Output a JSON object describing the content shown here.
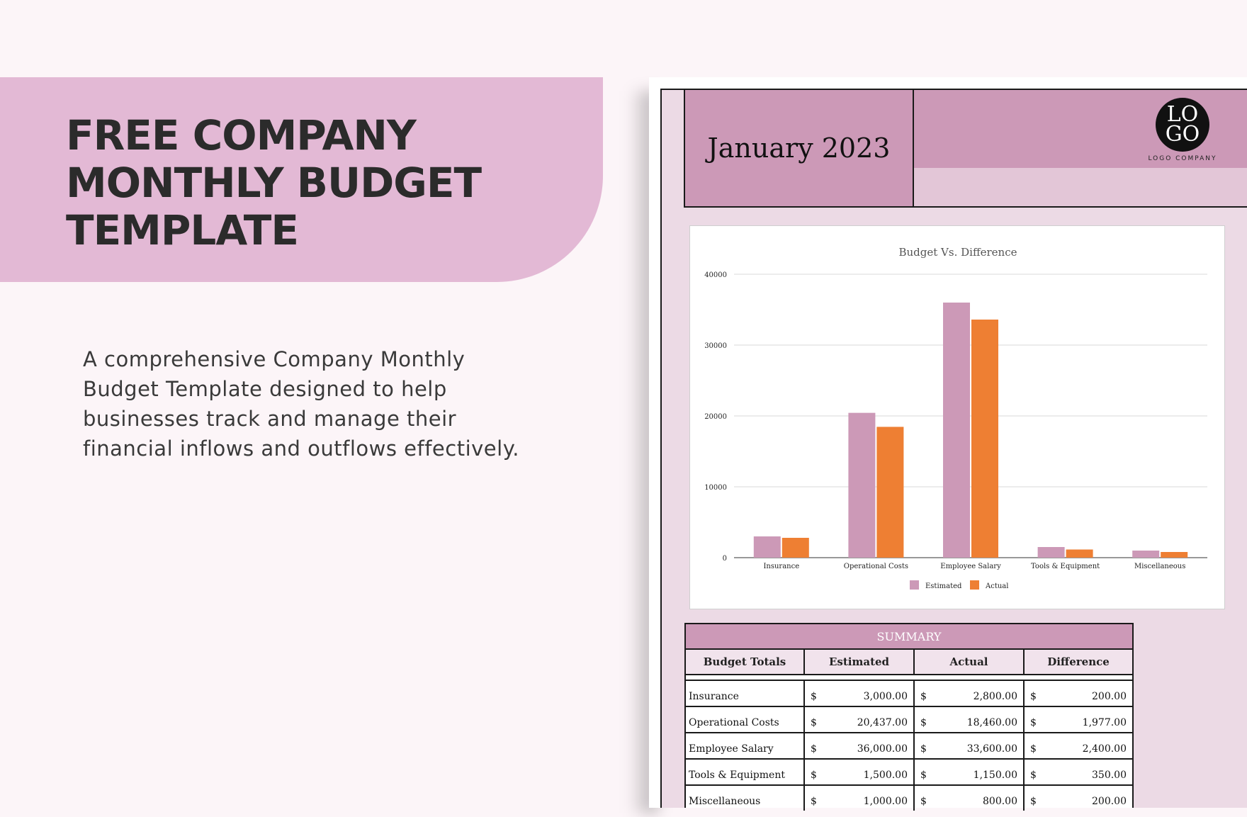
{
  "hero": {
    "title_line1": "FREE COMPANY",
    "title_line2": "MONTHLY BUDGET",
    "title_line3": "TEMPLATE",
    "description": "A comprehensive Company Monthly Budget Template designed to help businesses track and manage their financial inflows and outflows effectively."
  },
  "document": {
    "month": "January 2023",
    "logo_text_line1": "LO",
    "logo_text_line2": "GO",
    "logo_caption": "LOGO COMPANY"
  },
  "chart_data": {
    "type": "bar",
    "title": "Budget Vs. Difference",
    "categories": [
      "Insurance",
      "Operational Costs",
      "Employee Salary",
      "Tools & Equipment",
      "Miscellaneous"
    ],
    "series": [
      {
        "name": "Estimated",
        "values": [
          3000,
          20437,
          36000,
          1500,
          1000
        ],
        "color": "#cc99b7"
      },
      {
        "name": "Actual",
        "values": [
          2800,
          18460,
          33600,
          1150,
          800
        ],
        "color": "#ee7f33"
      }
    ],
    "yticks": [
      "0",
      "10000",
      "20000",
      "30000",
      "40000"
    ],
    "ylim": [
      0,
      40000
    ],
    "grid": true,
    "legend": "bottom"
  },
  "summary": {
    "title": "SUMMARY",
    "headers": [
      "Budget Totals",
      "Estimated",
      "Actual",
      "Difference"
    ],
    "currency": "$",
    "rows": [
      {
        "name": "Insurance",
        "estimated": "3,000.00",
        "actual": "2,800.00",
        "difference": "200.00"
      },
      {
        "name": "Operational Costs",
        "estimated": "20,437.00",
        "actual": "18,460.00",
        "difference": "1,977.00"
      },
      {
        "name": "Employee Salary",
        "estimated": "36,000.00",
        "actual": "33,600.00",
        "difference": "2,400.00"
      },
      {
        "name": "Tools & Equipment",
        "estimated": "1,500.00",
        "actual": "1,150.00",
        "difference": "350.00"
      },
      {
        "name": "Miscellaneous",
        "estimated": "1,000.00",
        "actual": "800.00",
        "difference": "200.00"
      }
    ]
  }
}
